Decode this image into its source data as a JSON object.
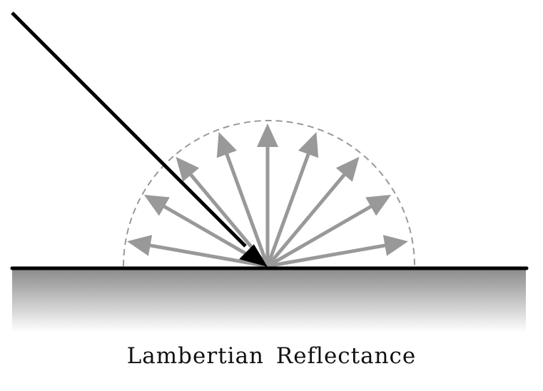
{
  "caption": "Lambertian Reflectance",
  "reflected_ray_count": 9,
  "colors": {
    "surface_line": "#000000",
    "incident_ray": "#000000",
    "reflected_ray": "#999999",
    "hemisphere_outline": "#999999",
    "surface_shade_top": "#8c8c8c",
    "surface_shade_bottom": "#ffffff"
  }
}
